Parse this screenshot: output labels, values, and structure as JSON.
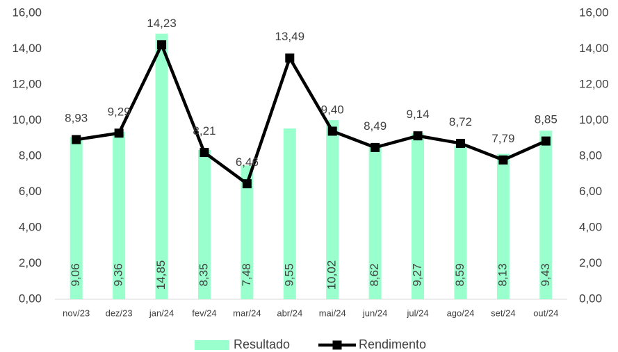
{
  "chart_data": {
    "type": "combo",
    "categories": [
      "nov/23",
      "dez/23",
      "jan/24",
      "fev/24",
      "mar/24",
      "abr/24",
      "mai/24",
      "jun/24",
      "jul/24",
      "ago/24",
      "set/24",
      "out/24"
    ],
    "series": [
      {
        "name": "Resultado",
        "type": "bar",
        "color": "#99ffcc",
        "values": [
          9.06,
          9.36,
          14.85,
          8.35,
          7.48,
          9.55,
          10.02,
          8.62,
          9.27,
          8.59,
          8.13,
          9.43
        ],
        "value_labels": [
          "9,06",
          "9,36",
          "14,85",
          "8,35",
          "7,48",
          "9,55",
          "10,02",
          "8,62",
          "9,27",
          "8,59",
          "8,13",
          "9,43"
        ]
      },
      {
        "name": "Rendimento",
        "type": "line",
        "color": "#000000",
        "axis": "y2",
        "values": [
          8.93,
          9.29,
          14.23,
          8.21,
          6.46,
          13.49,
          9.4,
          8.49,
          9.14,
          8.72,
          7.79,
          8.85
        ],
        "value_labels": [
          "8,93",
          "9,29",
          "14,23",
          "8,21",
          "6,46",
          "13,49",
          "9,40",
          "8,49",
          "9,14",
          "8,72",
          "7,79",
          "8,85"
        ]
      }
    ],
    "ylim": [
      0,
      16
    ],
    "yticks": [
      {
        "value": 0,
        "label": "0,00"
      },
      {
        "value": 2,
        "label": "2,00"
      },
      {
        "value": 4,
        "label": "4,00"
      },
      {
        "value": 6,
        "label": "6,00"
      },
      {
        "value": 8,
        "label": "8,00"
      },
      {
        "value": 10,
        "label": "10,00"
      },
      {
        "value": 12,
        "label": "12,00"
      },
      {
        "value": 14,
        "label": "14,00"
      },
      {
        "value": 16,
        "label": "16,00"
      }
    ],
    "y2lim": [
      0,
      16
    ],
    "y2ticks": [
      {
        "value": 0,
        "label": "0,00"
      },
      {
        "value": 2,
        "label": "2,00"
      },
      {
        "value": 4,
        "label": "4,00"
      },
      {
        "value": 6,
        "label": "6,00"
      },
      {
        "value": 8,
        "label": "8,00"
      },
      {
        "value": 10,
        "label": "10,00"
      },
      {
        "value": 12,
        "label": "12,00"
      },
      {
        "value": 14,
        "label": "14,00"
      },
      {
        "value": 16,
        "label": "16,00"
      }
    ],
    "grid": false,
    "legend": "bottom"
  }
}
